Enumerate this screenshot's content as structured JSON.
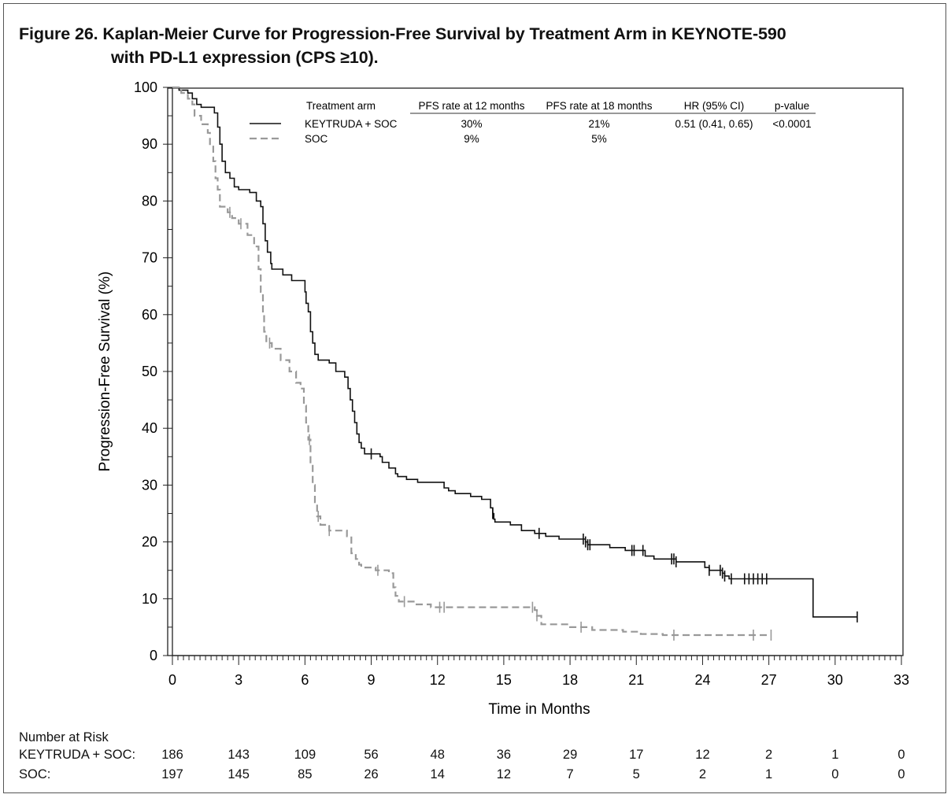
{
  "figure": {
    "title_line1": "Figure 26. Kaplan-Meier Curve for Progression-Free Survival by Treatment Arm in KEYNOTE-590",
    "title_line2": "with PD-L1 expression (CPS ≥10)."
  },
  "chart_data": {
    "type": "line",
    "subtype": "kaplan-meier",
    "xlabel": "Time in Months",
    "ylabel": "Progression-Free Survival (%)",
    "xlim": [
      0,
      33
    ],
    "ylim": [
      0,
      100
    ],
    "x_ticks": [
      0,
      3,
      6,
      9,
      12,
      15,
      18,
      21,
      24,
      27,
      30,
      33
    ],
    "y_ticks": [
      0,
      10,
      20,
      30,
      40,
      50,
      60,
      70,
      80,
      90,
      100
    ],
    "legend": {
      "position": "top-right",
      "headers": [
        "Treatment arm",
        "PFS rate at 12 months",
        "PFS rate at 18 months",
        "HR (95% CI)",
        "p-value"
      ],
      "rows": [
        {
          "arm": "KEYTRUDA + SOC",
          "pfs12": "30%",
          "pfs18": "21%",
          "hr": "0.51 (0.41, 0.65)",
          "p": "<0.0001"
        },
        {
          "arm": "SOC",
          "pfs12": "9%",
          "pfs18": "5%",
          "hr": "",
          "p": ""
        }
      ]
    },
    "series": [
      {
        "name": "KEYTRUDA + SOC",
        "color": "#111111",
        "dash": "solid",
        "steps": [
          [
            0,
            100
          ],
          [
            0.3,
            99.5
          ],
          [
            0.7,
            99
          ],
          [
            0.9,
            98
          ],
          [
            1.1,
            97
          ],
          [
            1.3,
            96.5
          ],
          [
            1.9,
            95.5
          ],
          [
            2.05,
            93
          ],
          [
            2.15,
            90
          ],
          [
            2.25,
            87
          ],
          [
            2.4,
            85
          ],
          [
            2.6,
            84
          ],
          [
            2.8,
            82.5
          ],
          [
            3.0,
            82
          ],
          [
            3.5,
            81.5
          ],
          [
            3.8,
            80
          ],
          [
            4.0,
            79
          ],
          [
            4.1,
            76
          ],
          [
            4.2,
            73
          ],
          [
            4.3,
            71
          ],
          [
            4.45,
            69
          ],
          [
            4.5,
            68
          ],
          [
            5.0,
            67
          ],
          [
            5.4,
            66
          ],
          [
            6.0,
            64
          ],
          [
            6.05,
            62
          ],
          [
            6.15,
            60.5
          ],
          [
            6.25,
            57
          ],
          [
            6.35,
            55
          ],
          [
            6.45,
            53
          ],
          [
            6.6,
            52
          ],
          [
            7.1,
            51.5
          ],
          [
            7.4,
            50
          ],
          [
            7.8,
            49
          ],
          [
            7.95,
            47
          ],
          [
            8.05,
            45
          ],
          [
            8.15,
            43
          ],
          [
            8.25,
            41
          ],
          [
            8.35,
            39
          ],
          [
            8.45,
            37.5
          ],
          [
            8.55,
            36.5
          ],
          [
            8.7,
            35.5
          ],
          [
            9.4,
            35
          ],
          [
            9.5,
            34
          ],
          [
            9.8,
            33
          ],
          [
            10.1,
            32
          ],
          [
            10.2,
            31.5
          ],
          [
            10.6,
            31
          ],
          [
            11.1,
            30.5
          ],
          [
            12.3,
            29.5
          ],
          [
            12.5,
            29
          ],
          [
            12.8,
            28.5
          ],
          [
            13.5,
            28
          ],
          [
            14.0,
            27.5
          ],
          [
            14.4,
            26
          ],
          [
            14.5,
            25
          ],
          [
            14.55,
            24
          ],
          [
            14.6,
            23.5
          ],
          [
            15.3,
            23
          ],
          [
            15.8,
            22
          ],
          [
            16.4,
            21.5
          ],
          [
            16.9,
            21
          ],
          [
            17.5,
            20.5
          ],
          [
            18.7,
            20
          ],
          [
            18.8,
            19.5
          ],
          [
            19.8,
            19
          ],
          [
            20.5,
            18.5
          ],
          [
            21.4,
            17.5
          ],
          [
            21.8,
            17
          ],
          [
            22.8,
            16.5
          ],
          [
            24.1,
            15.5
          ],
          [
            24.3,
            15
          ],
          [
            24.9,
            14.5
          ],
          [
            25.0,
            14
          ],
          [
            25.2,
            13.5
          ],
          [
            29.0,
            6.8
          ],
          [
            31.0,
            6.8
          ]
        ],
        "censor_times": [
          9.0,
          14.5,
          16.6,
          18.6,
          18.7,
          18.8,
          18.9,
          20.8,
          20.9,
          21.3,
          22.6,
          22.7,
          22.8,
          24.3,
          24.8,
          24.9,
          25.0,
          25.3,
          25.9,
          26.1,
          26.3,
          26.5,
          26.7,
          26.9,
          31.0
        ]
      },
      {
        "name": "SOC",
        "color": "#999999",
        "dash": "dashed",
        "steps": [
          [
            0,
            100
          ],
          [
            0.4,
            99
          ],
          [
            0.7,
            98
          ],
          [
            0.9,
            97
          ],
          [
            1.0,
            95
          ],
          [
            1.3,
            93.5
          ],
          [
            1.6,
            92
          ],
          [
            1.7,
            90
          ],
          [
            1.85,
            87
          ],
          [
            1.95,
            84
          ],
          [
            2.05,
            82
          ],
          [
            2.15,
            79
          ],
          [
            2.5,
            78
          ],
          [
            2.7,
            77
          ],
          [
            3.0,
            76
          ],
          [
            3.4,
            74
          ],
          [
            3.7,
            72
          ],
          [
            3.9,
            68
          ],
          [
            4.0,
            64
          ],
          [
            4.1,
            60
          ],
          [
            4.15,
            57
          ],
          [
            4.25,
            55
          ],
          [
            4.5,
            54
          ],
          [
            4.9,
            52
          ],
          [
            5.3,
            50
          ],
          [
            5.6,
            48
          ],
          [
            5.8,
            47
          ],
          [
            5.95,
            44
          ],
          [
            6.05,
            41
          ],
          [
            6.15,
            38
          ],
          [
            6.25,
            34
          ],
          [
            6.35,
            30
          ],
          [
            6.45,
            27
          ],
          [
            6.55,
            24.5
          ],
          [
            6.7,
            23
          ],
          [
            7.1,
            22
          ],
          [
            7.9,
            21
          ],
          [
            8.1,
            18
          ],
          [
            8.3,
            17
          ],
          [
            8.45,
            16
          ],
          [
            8.55,
            15.5
          ],
          [
            9.2,
            15
          ],
          [
            9.8,
            14.5
          ],
          [
            10.0,
            12
          ],
          [
            10.1,
            10.5
          ],
          [
            10.25,
            9.5
          ],
          [
            11.0,
            9
          ],
          [
            11.7,
            8.5
          ],
          [
            12.0,
            8.5
          ],
          [
            16.4,
            8
          ],
          [
            16.5,
            7
          ],
          [
            16.7,
            5.5
          ],
          [
            18.0,
            5
          ],
          [
            19.0,
            4.5
          ],
          [
            20.4,
            4.2
          ],
          [
            21.2,
            3.8
          ],
          [
            22.2,
            3.6
          ],
          [
            27.1,
            3.6
          ]
        ],
        "censor_times": [
          2.6,
          3.1,
          4.4,
          6.2,
          6.6,
          7.1,
          9.3,
          10.5,
          12.1,
          12.3,
          16.3,
          16.5,
          18.5,
          22.7,
          26.3,
          27.1
        ]
      }
    ]
  },
  "risk_table": {
    "title": "Number at Risk",
    "times": [
      0,
      3,
      6,
      9,
      12,
      15,
      18,
      21,
      24,
      27,
      30,
      33
    ],
    "rows": [
      {
        "label": "KEYTRUDA + SOC:",
        "counts": [
          "186",
          "143",
          "109",
          "56",
          "48",
          "36",
          "29",
          "17",
          "12",
          "2",
          "1",
          "0"
        ]
      },
      {
        "label": "SOC:",
        "counts": [
          "197",
          "145",
          "85",
          "26",
          "14",
          "12",
          "7",
          "5",
          "2",
          "1",
          "0",
          "0"
        ]
      }
    ]
  }
}
